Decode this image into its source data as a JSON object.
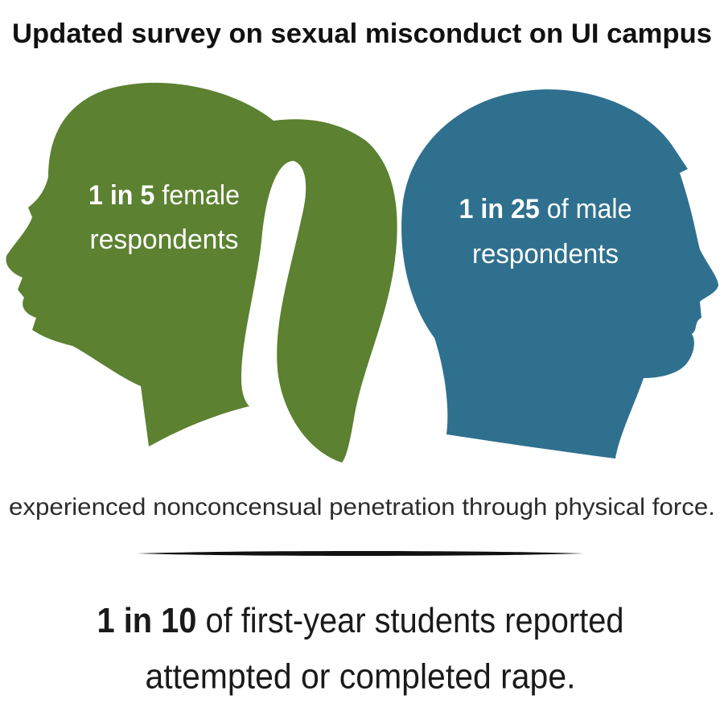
{
  "title": "Updated survey on sexual misconduct on UI campus",
  "female": {
    "highlight": "1 in 5",
    "text": "female",
    "line2": "respondents"
  },
  "male": {
    "highlight": "1 in 25",
    "text": "of male",
    "line2": "respondents"
  },
  "caption": "experienced nonconcensual penetration through physical force.",
  "footer": {
    "highlight": "1 in 10",
    "text": "of first-year students reported",
    "line2": "attempted or completed rape."
  }
}
